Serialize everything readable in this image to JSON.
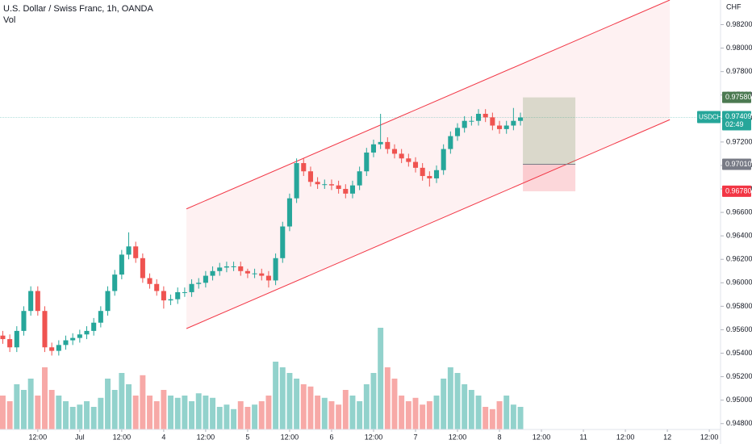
{
  "chart_data": {
    "type": "candlestick",
    "title": "U.S. Dollar / Swiss Franc, 1h, OANDA",
    "volume_label": "Vol",
    "currency": "CHF",
    "up_color": "#26a69a",
    "down_color": "#ef5350",
    "x": [
      2,
      4,
      6,
      8,
      10,
      12,
      14,
      16,
      18,
      20,
      22,
      24,
      26,
      28,
      30,
      32,
      34,
      36,
      38,
      40,
      42,
      44,
      46,
      48,
      50,
      52,
      54,
      56,
      58,
      60,
      62,
      64,
      66,
      68,
      70,
      72,
      74,
      76,
      78,
      80,
      82,
      84,
      86,
      88,
      90,
      92,
      94,
      96,
      98,
      100,
      102,
      104,
      106,
      108,
      110,
      112,
      114,
      116,
      118,
      120,
      122,
      124,
      126,
      128,
      130,
      132,
      134,
      136,
      138,
      140,
      142,
      144,
      146,
      148,
      150
    ],
    "open": [
      0.9555,
      0.9552,
      0.9545,
      0.9559,
      0.9576,
      0.9593,
      0.9576,
      0.9545,
      0.9542,
      0.9547,
      0.9551,
      0.9553,
      0.9556,
      0.9559,
      0.9566,
      0.9576,
      0.9593,
      0.9607,
      0.9624,
      0.9631,
      0.9621,
      0.9604,
      0.9599,
      0.9593,
      0.9585,
      0.9586,
      0.9592,
      0.9592,
      0.9599,
      0.96,
      0.9606,
      0.961,
      0.9613,
      0.9614,
      0.9614,
      0.961,
      0.9608,
      0.9608,
      0.9606,
      0.9602,
      0.9621,
      0.9648,
      0.9672,
      0.9702,
      0.9695,
      0.9686,
      0.9684,
      0.9684,
      0.9683,
      0.968,
      0.9676,
      0.9683,
      0.9695,
      0.9711,
      0.9718,
      0.972,
      0.9714,
      0.971,
      0.9706,
      0.9703,
      0.9698,
      0.9691,
      0.9689,
      0.9696,
      0.9714,
      0.9725,
      0.9732,
      0.9738,
      0.9738,
      0.9744,
      0.9741,
      0.9734,
      0.9731,
      0.9734,
      0.9738
    ],
    "high": [
      0.9559,
      0.9556,
      0.9563,
      0.958,
      0.9597,
      0.9597,
      0.958,
      0.9549,
      0.9551,
      0.9555,
      0.9557,
      0.956,
      0.9563,
      0.957,
      0.958,
      0.9597,
      0.9611,
      0.9628,
      0.9643,
      0.9635,
      0.9625,
      0.9608,
      0.9603,
      0.9597,
      0.959,
      0.9596,
      0.9596,
      0.9603,
      0.9604,
      0.961,
      0.9614,
      0.9617,
      0.9618,
      0.9618,
      0.9618,
      0.9612,
      0.9612,
      0.9612,
      0.961,
      0.9625,
      0.9652,
      0.9676,
      0.9706,
      0.9706,
      0.9699,
      0.969,
      0.9688,
      0.9688,
      0.9687,
      0.9684,
      0.9687,
      0.9699,
      0.9715,
      0.9722,
      0.9744,
      0.9724,
      0.9718,
      0.9714,
      0.971,
      0.9707,
      0.9702,
      0.9695,
      0.97,
      0.9718,
      0.9729,
      0.9736,
      0.9742,
      0.9742,
      0.9748,
      0.9748,
      0.9745,
      0.9738,
      0.9738,
      0.9749,
      0.9745
    ],
    "low": [
      0.9548,
      0.9541,
      0.9541,
      0.9555,
      0.9572,
      0.9572,
      0.9541,
      0.9538,
      0.9538,
      0.9543,
      0.9547,
      0.9549,
      0.9552,
      0.9555,
      0.9562,
      0.9572,
      0.9589,
      0.9603,
      0.962,
      0.9617,
      0.96,
      0.9595,
      0.9589,
      0.9578,
      0.9581,
      0.9582,
      0.9588,
      0.9588,
      0.9595,
      0.9596,
      0.9602,
      0.9606,
      0.9609,
      0.961,
      0.9606,
      0.9604,
      0.9604,
      0.9602,
      0.9596,
      0.9598,
      0.9617,
      0.9644,
      0.9668,
      0.9691,
      0.9682,
      0.968,
      0.968,
      0.9679,
      0.9676,
      0.9672,
      0.9672,
      0.9679,
      0.9691,
      0.9707,
      0.9714,
      0.971,
      0.9706,
      0.9702,
      0.9699,
      0.9694,
      0.9687,
      0.9682,
      0.9685,
      0.9692,
      0.971,
      0.9721,
      0.9728,
      0.9734,
      0.9734,
      0.9737,
      0.973,
      0.9727,
      0.9727,
      0.973,
      0.9734
    ],
    "close": [
      0.9552,
      0.9545,
      0.9559,
      0.9576,
      0.9593,
      0.9576,
      0.9545,
      0.9542,
      0.9547,
      0.9551,
      0.9553,
      0.9556,
      0.9559,
      0.9566,
      0.9576,
      0.9593,
      0.9607,
      0.9624,
      0.9631,
      0.9621,
      0.9604,
      0.9599,
      0.9593,
      0.9585,
      0.9586,
      0.9592,
      0.9592,
      0.9599,
      0.96,
      0.9606,
      0.961,
      0.9613,
      0.9614,
      0.9614,
      0.961,
      0.9608,
      0.9608,
      0.9606,
      0.9602,
      0.9621,
      0.9648,
      0.9672,
      0.9702,
      0.9695,
      0.9686,
      0.9684,
      0.9684,
      0.9683,
      0.968,
      0.9676,
      0.9683,
      0.9695,
      0.9711,
      0.9718,
      0.972,
      0.9714,
      0.971,
      0.9706,
      0.9703,
      0.9698,
      0.9691,
      0.9689,
      0.9696,
      0.9714,
      0.9725,
      0.9732,
      0.9738,
      0.9738,
      0.9744,
      0.9741,
      0.9734,
      0.9731,
      0.9734,
      0.9738,
      0.97409
    ],
    "volume": [
      30,
      25,
      40,
      35,
      45,
      30,
      55,
      35,
      30,
      25,
      20,
      22,
      25,
      20,
      28,
      45,
      35,
      50,
      40,
      30,
      48,
      30,
      25,
      35,
      30,
      28,
      30,
      25,
      32,
      30,
      28,
      20,
      22,
      18,
      25,
      20,
      22,
      25,
      30,
      60,
      55,
      50,
      45,
      40,
      38,
      30,
      28,
      25,
      22,
      35,
      30,
      25,
      40,
      50,
      90,
      55,
      45,
      30,
      25,
      28,
      22,
      25,
      30,
      45,
      55,
      50,
      40,
      35,
      30,
      20,
      18,
      25,
      30,
      22,
      20
    ],
    "volume_ylim": [
      0,
      100
    ],
    "xlim": [
      1.2,
      207.2
    ],
    "xticks": [
      {
        "value": 12,
        "label": "12:00"
      },
      {
        "value": 24,
        "label": "Jul"
      },
      {
        "value": 36,
        "label": "12:00"
      },
      {
        "value": 48,
        "label": "4"
      },
      {
        "value": 60,
        "label": "12:00"
      },
      {
        "value": 72,
        "label": "5"
      },
      {
        "value": 84,
        "label": "12:00"
      },
      {
        "value": 96,
        "label": "6"
      },
      {
        "value": 108,
        "label": "12:00"
      },
      {
        "value": 120,
        "label": "7"
      },
      {
        "value": 132,
        "label": "12:00"
      },
      {
        "value": 144,
        "label": "8"
      },
      {
        "value": 156,
        "label": "12:00"
      },
      {
        "value": 168,
        "label": "11"
      },
      {
        "value": 180,
        "label": "12:00"
      },
      {
        "value": 192,
        "label": "12"
      },
      {
        "value": 204,
        "label": "12:00"
      }
    ],
    "ylim": [
      0.9475,
      0.9841
    ],
    "yticks": [
      {
        "value": 0.948,
        "label": "0.94800"
      },
      {
        "value": 0.95,
        "label": "0.95000"
      },
      {
        "value": 0.952,
        "label": "0.95200"
      },
      {
        "value": 0.954,
        "label": "0.95400"
      },
      {
        "value": 0.956,
        "label": "0.95600"
      },
      {
        "value": 0.958,
        "label": "0.95800"
      },
      {
        "value": 0.96,
        "label": "0.96000"
      },
      {
        "value": 0.962,
        "label": "0.96200"
      },
      {
        "value": 0.964,
        "label": "0.96400"
      },
      {
        "value": 0.966,
        "label": "0.96600"
      },
      {
        "value": 0.968,
        "label": "0.96800"
      },
      {
        "value": 0.97,
        "label": "0.97000"
      },
      {
        "value": 0.972,
        "label": "0.97200"
      },
      {
        "value": 0.974,
        "label": "0.97400"
      },
      {
        "value": 0.976,
        "label": "0.97600"
      },
      {
        "value": 0.978,
        "label": "0.97800"
      },
      {
        "value": 0.98,
        "label": "0.98000"
      },
      {
        "value": 0.982,
        "label": "0.98200"
      }
    ],
    "grid": false,
    "channel": {
      "x": [
        54.5,
        192.7
      ],
      "upper": [
        0.9663,
        0.9841
      ],
      "lower": [
        0.9561,
        0.9739
      ],
      "color": "#f23645"
    },
    "position": {
      "x": [
        150.7,
        165.7
      ],
      "target": {
        "value": 0.9758,
        "label": "0.97580"
      },
      "entry": {
        "value": 0.9701,
        "label": "0.97010"
      },
      "stop": {
        "value": 0.9678,
        "label": "0.96780"
      }
    },
    "last": {
      "symbol": "USDCHF",
      "value": 0.97409,
      "label": "0.97409",
      "countdown": "02:49"
    }
  }
}
